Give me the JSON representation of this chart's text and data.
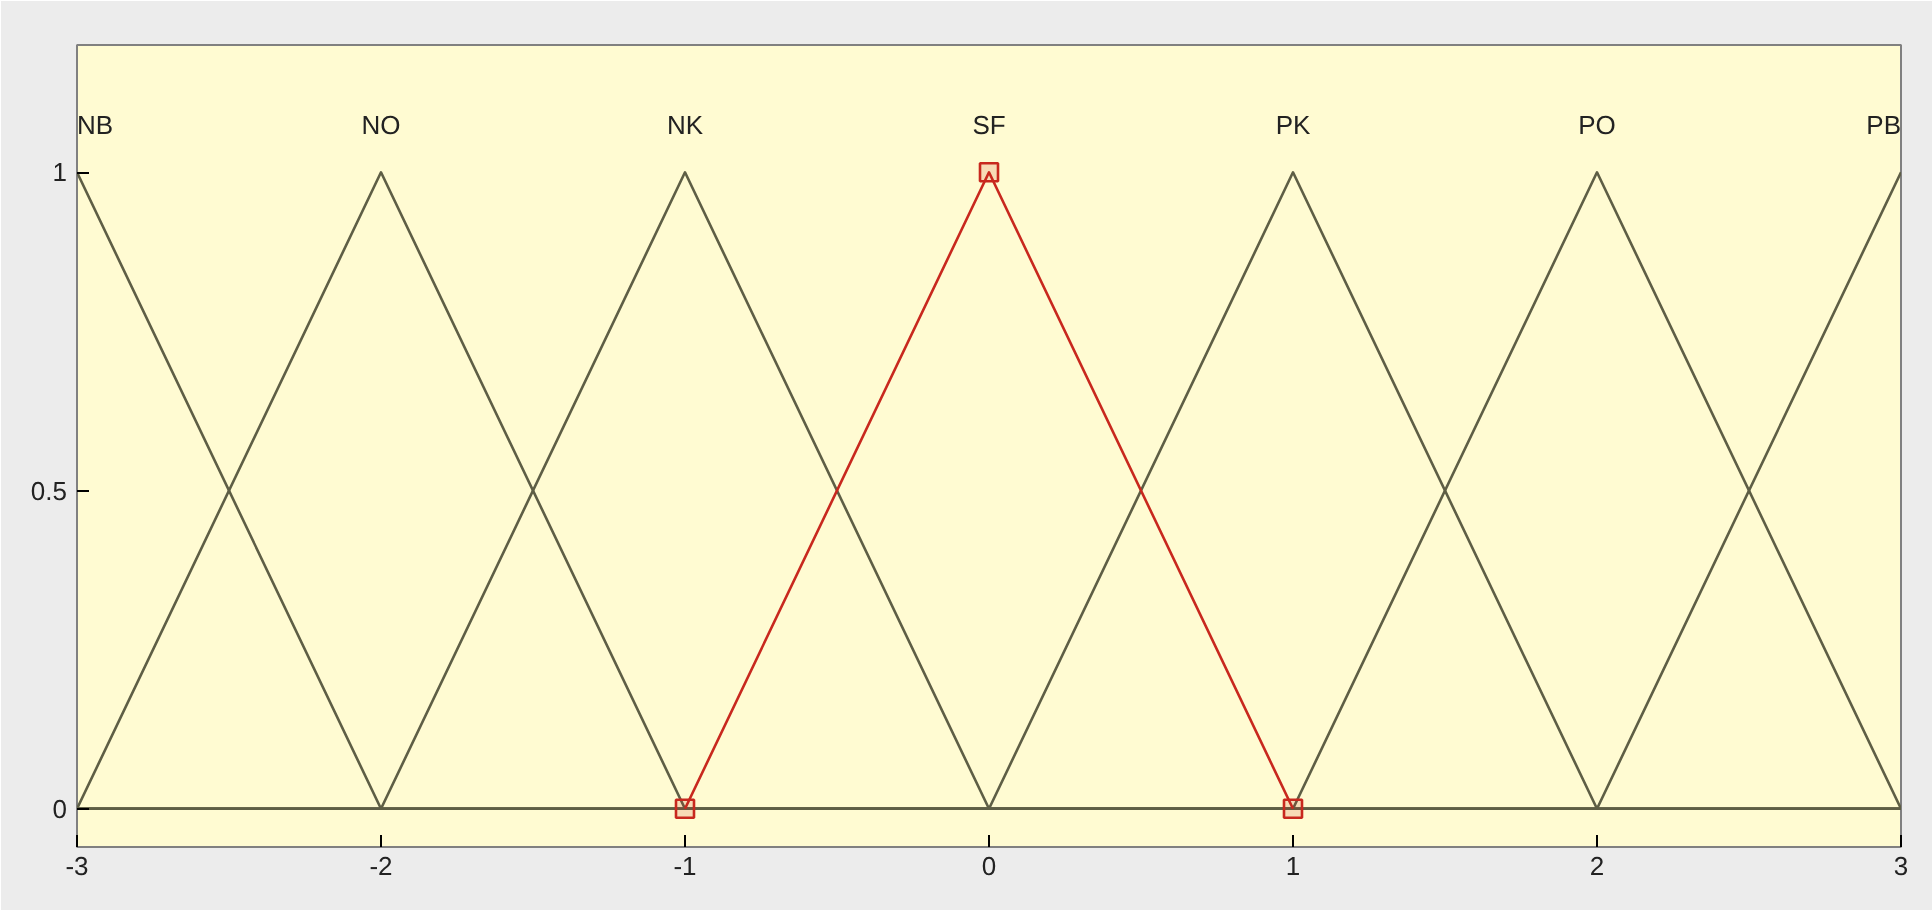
{
  "chart_data": {
    "type": "line",
    "x": [
      -3,
      -2,
      -1,
      0,
      1,
      2,
      3
    ],
    "series": [
      {
        "name": "NB",
        "color": "#5e5e45",
        "values": [
          1,
          0,
          0,
          0,
          0,
          0,
          0
        ]
      },
      {
        "name": "NO",
        "color": "#5e5e45",
        "values": [
          0,
          1,
          0,
          0,
          0,
          0,
          0
        ]
      },
      {
        "name": "NK",
        "color": "#5e5e45",
        "values": [
          0,
          0,
          1,
          0,
          0,
          0,
          0
        ]
      },
      {
        "name": "PK",
        "color": "#5e5e45",
        "values": [
          0,
          0,
          0,
          0,
          1,
          0,
          0
        ]
      },
      {
        "name": "PO",
        "color": "#5e5e45",
        "values": [
          0,
          0,
          0,
          0,
          0,
          1,
          0
        ]
      },
      {
        "name": "PB",
        "color": "#5e5e45",
        "values": [
          0,
          0,
          0,
          0,
          0,
          0,
          1
        ]
      },
      {
        "name": "SF",
        "color": "#c8281e",
        "x": [
          -1,
          0,
          1
        ],
        "values": [
          0,
          1,
          0
        ],
        "marker": "square"
      }
    ],
    "xlim": [
      -3,
      3
    ],
    "ylim": [
      -0.06,
      1.2
    ],
    "xticks": [
      -3,
      -2,
      -1,
      0,
      1,
      2,
      3
    ],
    "yticks": [
      0,
      0.5,
      1
    ],
    "grid": false,
    "line_style": "solid"
  }
}
